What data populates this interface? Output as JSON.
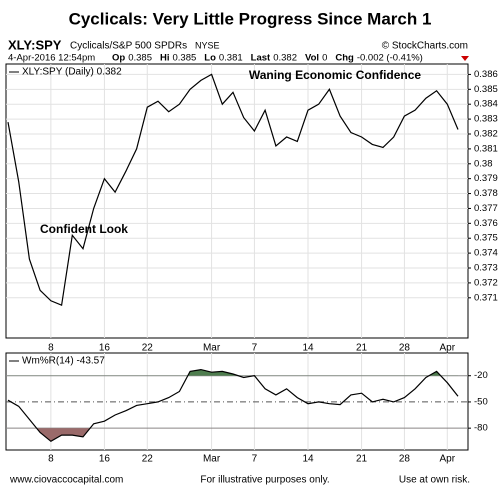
{
  "title": "Cyclicals: Very Little Progress Since March 1",
  "header": {
    "symbol": "XLY:SPY",
    "name": "Cyclicals/S&P 500 SPDRs",
    "exchange": "NYSE",
    "source": "© StockCharts.com",
    "date": "4-Apr-2016 12:54pm",
    "quote": [
      {
        "k": "Op",
        "v": "0.385"
      },
      {
        "k": "Hi",
        "v": "0.385"
      },
      {
        "k": "Lo",
        "v": "0.381"
      },
      {
        "k": "Last",
        "v": "0.382"
      },
      {
        "k": "Vol",
        "v": "0"
      },
      {
        "k": "Chg",
        "v": "-0.002 (-0.41%)"
      }
    ]
  },
  "chart_data": [
    {
      "type": "line",
      "legend": "XLY:SPY (Daily) 0.382",
      "color": "#000000",
      "grid": true,
      "categories": [
        null,
        null,
        null,
        null,
        "8",
        null,
        null,
        null,
        null,
        "16",
        null,
        null,
        null,
        "22",
        null,
        null,
        null,
        null,
        null,
        "Mar",
        null,
        null,
        null,
        "7",
        null,
        null,
        null,
        null,
        "14",
        null,
        null,
        null,
        null,
        "21",
        null,
        null,
        null,
        "28",
        null,
        null,
        null,
        "Apr",
        null
      ],
      "values": [
        0.3828,
        0.3788,
        0.3736,
        0.3715,
        0.3708,
        0.3705,
        0.3752,
        0.3743,
        0.377,
        0.379,
        0.3781,
        0.3795,
        0.381,
        0.3838,
        0.3842,
        0.3835,
        0.384,
        0.385,
        0.3856,
        0.386,
        0.384,
        0.3848,
        0.3831,
        0.3822,
        0.3836,
        0.3812,
        0.3818,
        0.3815,
        0.3836,
        0.384,
        0.385,
        0.3832,
        0.3821,
        0.3818,
        0.3813,
        0.3811,
        0.3818,
        0.3832,
        0.3836,
        0.3844,
        0.3849,
        0.384,
        0.3823
      ],
      "ylim": [
        0.3683,
        0.3867
      ],
      "yticks": [
        0.371,
        0.372,
        0.373,
        0.374,
        0.375,
        0.376,
        0.377,
        0.378,
        0.379,
        0.38,
        0.381,
        0.382,
        0.383,
        0.384,
        0.385,
        0.386
      ],
      "annotations": [
        "Confident Look",
        "Waning Economic Confidence"
      ],
      "annotation_colors": [
        "#2ea043",
        "#f28a30"
      ]
    },
    {
      "type": "oscillator",
      "legend": "Wm%R(14) -43.57",
      "color": "#000000",
      "overbought_color": "#4e7d4e",
      "oversold_color": "#9a6a6a",
      "categories": [
        null,
        null,
        null,
        null,
        "8",
        null,
        null,
        null,
        null,
        "16",
        null,
        null,
        null,
        "22",
        null,
        null,
        null,
        null,
        null,
        "Mar",
        null,
        null,
        null,
        "7",
        null,
        null,
        null,
        null,
        "14",
        null,
        null,
        null,
        null,
        "21",
        null,
        null,
        null,
        "28",
        null,
        null,
        null,
        "Apr",
        null
      ],
      "values": [
        -48,
        -55,
        -70,
        -85,
        -95,
        -88,
        -88,
        -90,
        -75,
        -72,
        -65,
        -60,
        -54,
        -52,
        -50,
        -45,
        -38,
        -15,
        -13,
        -16,
        -15,
        -18,
        -22,
        -20,
        -35,
        -42,
        -35,
        -45,
        -52,
        -50,
        -52,
        -53,
        -42,
        -40,
        -50,
        -47,
        -50,
        -45,
        -35,
        -22,
        -15,
        -28,
        -43.57
      ],
      "ylim": [
        -105,
        6
      ],
      "yticks": [
        -20,
        -50,
        -80
      ]
    }
  ],
  "footer": {
    "left": "www.ciovaccocapital.com",
    "center": "For illustrative purposes only.",
    "right": "Use at own risk."
  }
}
